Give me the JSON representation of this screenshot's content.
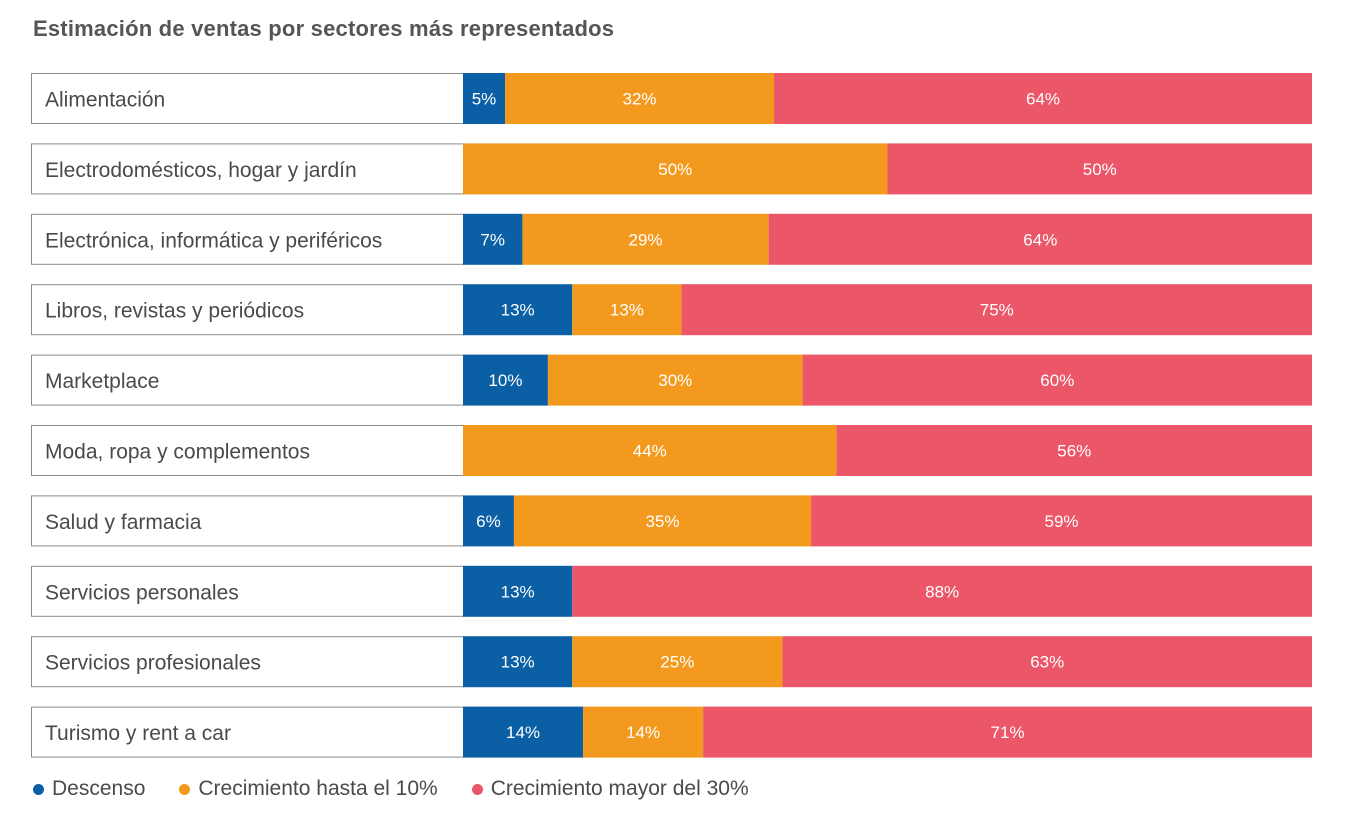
{
  "chart_data": {
    "type": "bar",
    "orientation": "horizontal",
    "stacked": true,
    "title": "Estimación de ventas por sectores más representados",
    "categories": [
      "Alimentación",
      "Electrodomésticos, hogar y jardín",
      "Electrónica, informática y periféricos",
      "Libros, revistas y periódicos",
      "Marketplace",
      "Moda, ropa y complementos",
      "Salud y farmacia",
      "Servicios personales",
      "Servicios profesionales",
      "Turismo y rent a car"
    ],
    "series": [
      {
        "name": "Descenso",
        "color": "#0b5fa5",
        "values": [
          5,
          0,
          7,
          13,
          10,
          0,
          6,
          13,
          13,
          14
        ]
      },
      {
        "name": "Crecimiento hasta el 10%",
        "color": "#f39a1e",
        "values": [
          32,
          50,
          29,
          13,
          30,
          44,
          35,
          0,
          25,
          14
        ]
      },
      {
        "name": "Crecimiento mayor del 30%",
        "color": "#eb5769",
        "values": [
          64,
          50,
          64,
          75,
          60,
          56,
          59,
          88,
          63,
          71
        ]
      }
    ],
    "value_suffix": "%",
    "legend_position": "bottom-left",
    "grid": false
  }
}
